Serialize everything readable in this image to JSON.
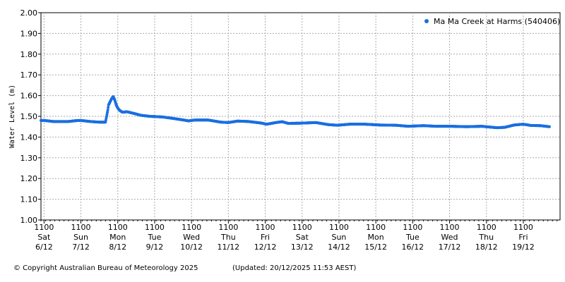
{
  "chart_data": {
    "type": "scatter",
    "title": "",
    "xlabel": "",
    "ylabel": "Water Level (m)",
    "ylim": [
      1.0,
      2.0
    ],
    "xlim": [
      "2025-12-06 09:00",
      "2025-12-20 04:00"
    ],
    "yticks": [
      "2.00",
      "1.90",
      "1.80",
      "1.70",
      "1.60",
      "1.50",
      "1.40",
      "1.30",
      "1.20",
      "1.10",
      "1.00"
    ],
    "xticks": [
      {
        "time": "1100",
        "day": "Sat",
        "date": "6/12"
      },
      {
        "time": "1100",
        "day": "Sun",
        "date": "7/12"
      },
      {
        "time": "1100",
        "day": "Mon",
        "date": "8/12"
      },
      {
        "time": "1100",
        "day": "Tue",
        "date": "9/12"
      },
      {
        "time": "1100",
        "day": "Wed",
        "date": "10/12"
      },
      {
        "time": "1100",
        "day": "Thu",
        "date": "11/12"
      },
      {
        "time": "1100",
        "day": "Fri",
        "date": "12/12"
      },
      {
        "time": "1100",
        "day": "Sat",
        "date": "13/12"
      },
      {
        "time": "1100",
        "day": "Sun",
        "date": "14/12"
      },
      {
        "time": "1100",
        "day": "Mon",
        "date": "15/12"
      },
      {
        "time": "1100",
        "day": "Tue",
        "date": "16/12"
      },
      {
        "time": "1100",
        "day": "Wed",
        "date": "17/12"
      },
      {
        "time": "1100",
        "day": "Thu",
        "date": "18/12"
      },
      {
        "time": "1100",
        "day": "Fri",
        "date": "19/12"
      }
    ],
    "grid": true,
    "legend_position": "top-right",
    "color": "#1a6fe0",
    "series": [
      {
        "name": "Ma Ma Creek at Harms (540406)",
        "points": [
          [
            "2025-12-06 09:00",
            1.48
          ],
          [
            "2025-12-06 11:00",
            1.48
          ],
          [
            "2025-12-06 17:00",
            1.475
          ],
          [
            "2025-12-07 03:00",
            1.475
          ],
          [
            "2025-12-07 09:00",
            1.48
          ],
          [
            "2025-12-07 11:00",
            1.48
          ],
          [
            "2025-12-07 17:00",
            1.475
          ],
          [
            "2025-12-07 23:00",
            1.472
          ],
          [
            "2025-12-08 03:00",
            1.472
          ],
          [
            "2025-12-08 04:00",
            1.51
          ],
          [
            "2025-12-08 04:30",
            1.53
          ],
          [
            "2025-12-08 05:00",
            1.555
          ],
          [
            "2025-12-08 06:00",
            1.57
          ],
          [
            "2025-12-08 07:00",
            1.585
          ],
          [
            "2025-12-08 08:00",
            1.595
          ],
          [
            "2025-12-08 09:00",
            1.58
          ],
          [
            "2025-12-08 10:00",
            1.555
          ],
          [
            "2025-12-08 11:00",
            1.54
          ],
          [
            "2025-12-08 12:00",
            1.53
          ],
          [
            "2025-12-08 14:00",
            1.52
          ],
          [
            "2025-12-08 17:00",
            1.522
          ],
          [
            "2025-12-08 21:00",
            1.515
          ],
          [
            "2025-12-09 02:00",
            1.505
          ],
          [
            "2025-12-09 08:00",
            1.5
          ],
          [
            "2025-12-09 16:00",
            1.497
          ],
          [
            "2025-12-09 23:00",
            1.49
          ],
          [
            "2025-12-10 06:00",
            1.482
          ],
          [
            "2025-12-10 09:00",
            1.478
          ],
          [
            "2025-12-10 13:00",
            1.482
          ],
          [
            "2025-12-10 22:00",
            1.482
          ],
          [
            "2025-12-11 06:00",
            1.472
          ],
          [
            "2025-12-11 11:00",
            1.47
          ],
          [
            "2025-12-11 17:00",
            1.477
          ],
          [
            "2025-12-12 00:00",
            1.475
          ],
          [
            "2025-12-12 08:00",
            1.468
          ],
          [
            "2025-12-12 12:00",
            1.462
          ],
          [
            "2025-12-12 18:00",
            1.47
          ],
          [
            "2025-12-12 22:00",
            1.474
          ],
          [
            "2025-12-13 02:00",
            1.466
          ],
          [
            "2025-12-13 10:00",
            1.467
          ],
          [
            "2025-12-13 20:00",
            1.47
          ],
          [
            "2025-12-14 04:00",
            1.46
          ],
          [
            "2025-12-14 10:00",
            1.457
          ],
          [
            "2025-12-14 18:00",
            1.462
          ],
          [
            "2025-12-15 04:00",
            1.462
          ],
          [
            "2025-12-15 14:00",
            1.458
          ],
          [
            "2025-12-16 00:00",
            1.457
          ],
          [
            "2025-12-16 08:00",
            1.452
          ],
          [
            "2025-12-16 18:00",
            1.455
          ],
          [
            "2025-12-17 02:00",
            1.452
          ],
          [
            "2025-12-17 12:00",
            1.452
          ],
          [
            "2025-12-17 22:00",
            1.45
          ],
          [
            "2025-12-18 08:00",
            1.452
          ],
          [
            "2025-12-18 15:00",
            1.447
          ],
          [
            "2025-12-18 18:00",
            1.445
          ],
          [
            "2025-12-18 23:00",
            1.447
          ],
          [
            "2025-12-19 05:00",
            1.458
          ],
          [
            "2025-12-19 11:00",
            1.462
          ],
          [
            "2025-12-19 16:00",
            1.456
          ],
          [
            "2025-12-19 22:00",
            1.455
          ],
          [
            "2025-12-20 04:00",
            1.45
          ]
        ]
      }
    ]
  },
  "footer": {
    "copyright": "© Copyright Australian Bureau of Meteorology 2025",
    "updated": "(Updated: 20/12/2025 11:53 AEST)"
  }
}
